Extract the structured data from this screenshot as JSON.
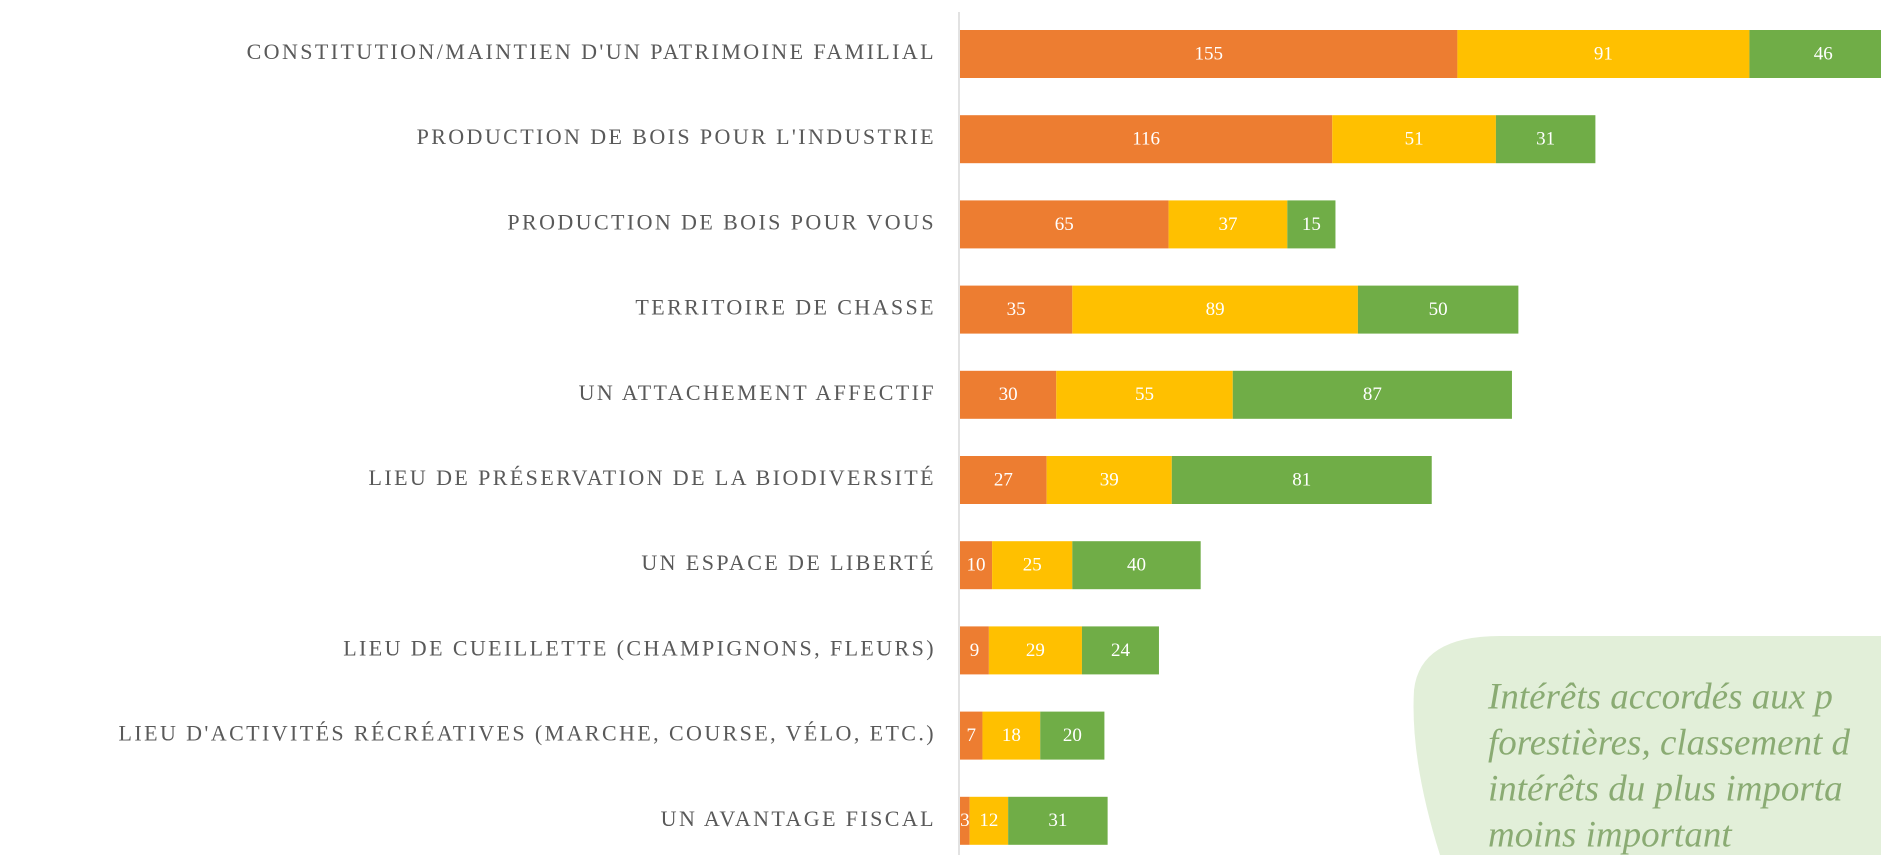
{
  "chart_data": {
    "type": "stacked_barh",
    "categories": [
      "CONSTITUTION/MAINTIEN D'UN PATRIMOINE FAMILIAL",
      "PRODUCTION DE BOIS POUR L'INDUSTRIE",
      "PRODUCTION DE BOIS POUR VOUS",
      "TERRITOIRE DE CHASSE",
      "UN ATTACHEMENT AFFECTIF",
      "LIEU DE PRÉSERVATION DE LA BIODIVERSITÉ",
      "UN ESPACE DE LIBERTÉ",
      "LIEU DE CUEILLETTE (CHAMPIGNONS, FLEURS)",
      "LIEU D'ACTIVITÉS RÉCRÉATIVES (MARCHE, COURSE, VÉLO, ETC.)",
      "UN AVANTAGE FISCAL"
    ],
    "series": [
      {
        "color": "#ed7d31",
        "values": [
          155,
          116,
          65,
          35,
          30,
          27,
          10,
          9,
          7,
          3
        ]
      },
      {
        "color": "#ffc000",
        "values": [
          91,
          51,
          37,
          89,
          55,
          39,
          25,
          29,
          18,
          12
        ]
      },
      {
        "color": "#70ad47",
        "values": [
          46,
          31,
          15,
          50,
          87,
          81,
          40,
          24,
          20,
          31
        ]
      }
    ],
    "xlim": [
      0,
      287
    ],
    "annotation": [
      "Intérêts accordés aux p",
      "forestières, classement d",
      "intérêts du plus importa",
      "moins important"
    ]
  }
}
